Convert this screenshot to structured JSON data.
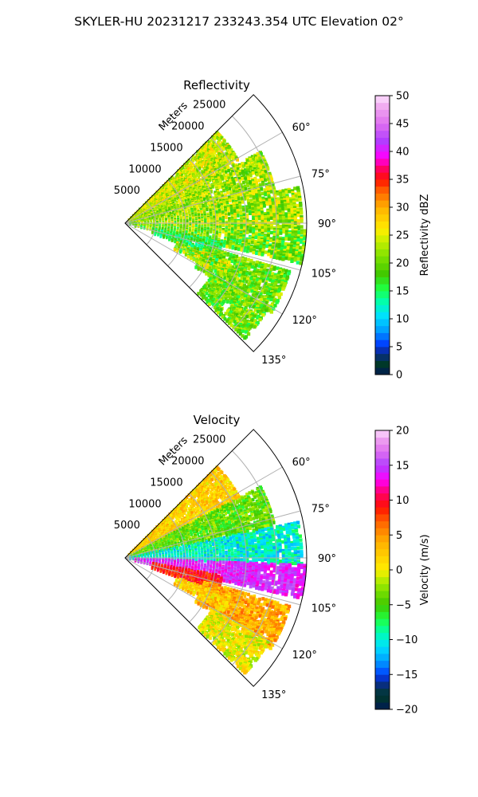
{
  "suptitle": "SKYLER-HU  20231217  233243.354 UTC Elevation 02°",
  "chart_data": [
    {
      "type": "heatmap",
      "projection": "polar-sector",
      "title": "Reflectivity",
      "radial_label": "Meters",
      "radial_ticks": [
        5000,
        10000,
        15000,
        20000,
        25000
      ],
      "rmax": 30000,
      "angle_ticks_deg": [
        60,
        75,
        90,
        105,
        120,
        135
      ],
      "angle_range_deg": [
        45,
        135
      ],
      "colorbar": {
        "label": "Reflectivity dBZ",
        "range": [
          0,
          50
        ],
        "ticks": [
          0,
          5,
          10,
          15,
          20,
          25,
          30,
          35,
          40,
          45,
          50
        ],
        "stops": [
          [
            0,
            "#001a55"
          ],
          [
            2,
            "#003a26"
          ],
          [
            4,
            "#0a2a9a"
          ],
          [
            5.5,
            "#0040ff"
          ],
          [
            8,
            "#00a0ff"
          ],
          [
            10.5,
            "#00e0ff"
          ],
          [
            13,
            "#00ffb0"
          ],
          [
            15.5,
            "#20ff40"
          ],
          [
            18,
            "#40c800"
          ],
          [
            21,
            "#7be000"
          ],
          [
            24,
            "#c8f000"
          ],
          [
            26,
            "#ffee00"
          ],
          [
            30,
            "#ffb000"
          ],
          [
            33,
            "#ff6000"
          ],
          [
            35,
            "#ff1000"
          ],
          [
            37,
            "#ff0066"
          ],
          [
            39,
            "#ff00ff"
          ],
          [
            42,
            "#b040ff"
          ],
          [
            45,
            "#e070f0"
          ],
          [
            48,
            "#f0a8f0"
          ],
          [
            50,
            "#fde0ff"
          ]
        ]
      },
      "echo_regions": [
        {
          "a0": 45,
          "a1": 62,
          "r0": 0.02,
          "r1": 0.72,
          "value": 24,
          "spread": 5
        },
        {
          "a0": 62,
          "a1": 78,
          "r0": 0.03,
          "r1": 0.85,
          "value": 22,
          "spread": 5
        },
        {
          "a0": 78,
          "a1": 92,
          "r0": 0.02,
          "r1": 0.98,
          "value": 22,
          "spread": 6
        },
        {
          "a0": 92,
          "a1": 103,
          "r0": 0.05,
          "r1": 1.0,
          "value": 20,
          "spread": 6
        },
        {
          "a0": 100,
          "a1": 110,
          "r0": 0.15,
          "r1": 0.55,
          "value": 16,
          "spread": 4
        },
        {
          "a0": 106,
          "a1": 122,
          "r0": 0.45,
          "r1": 0.95,
          "value": 20,
          "spread": 5
        },
        {
          "a0": 120,
          "a1": 134,
          "r0": 0.55,
          "r1": 0.92,
          "value": 20,
          "spread": 5
        },
        {
          "a0": 110,
          "a1": 118,
          "r0": 0.3,
          "r1": 0.62,
          "value": 21,
          "spread": 8
        }
      ]
    },
    {
      "type": "heatmap",
      "projection": "polar-sector",
      "title": "Velocity",
      "radial_label": "Meters",
      "radial_ticks": [
        5000,
        10000,
        15000,
        20000,
        25000
      ],
      "rmax": 30000,
      "angle_ticks_deg": [
        60,
        75,
        90,
        105,
        120,
        135
      ],
      "angle_range_deg": [
        45,
        135
      ],
      "colorbar": {
        "label": "Velocity (m/s)",
        "range": [
          -20,
          20
        ],
        "ticks": [
          -20,
          -15,
          -10,
          -5,
          0,
          5,
          10,
          15,
          20
        ],
        "stops": [
          [
            -20,
            "#001a55"
          ],
          [
            -18,
            "#003a26"
          ],
          [
            -16,
            "#0a2a9a"
          ],
          [
            -15,
            "#0040ff"
          ],
          [
            -13,
            "#00a0ff"
          ],
          [
            -11,
            "#00e0ff"
          ],
          [
            -9,
            "#00ffb0"
          ],
          [
            -7,
            "#20ff40"
          ],
          [
            -5,
            "#40c800"
          ],
          [
            -3,
            "#7be000"
          ],
          [
            -1,
            "#c8f000"
          ],
          [
            0,
            "#ffee00"
          ],
          [
            4,
            "#ffb000"
          ],
          [
            7,
            "#ff6000"
          ],
          [
            9,
            "#ff1000"
          ],
          [
            11,
            "#ff0066"
          ],
          [
            13,
            "#ff00ff"
          ],
          [
            15,
            "#b040ff"
          ],
          [
            17,
            "#e070f0"
          ],
          [
            19,
            "#f0a8f0"
          ],
          [
            20,
            "#fde0ff"
          ]
        ]
      },
      "echo_regions": [
        {
          "a0": 45,
          "a1": 62,
          "r0": 0.02,
          "r1": 0.72,
          "value": 2,
          "spread": 3
        },
        {
          "a0": 62,
          "a1": 78,
          "r0": 0.03,
          "r1": 0.85,
          "value": -4,
          "spread": 3
        },
        {
          "a0": 78,
          "a1": 92,
          "r0": 0.02,
          "r1": 0.98,
          "value": -10,
          "spread": 3
        },
        {
          "a0": 92,
          "a1": 103,
          "r0": 0.05,
          "r1": 1.0,
          "value": 14,
          "spread": 2
        },
        {
          "a0": 100,
          "a1": 110,
          "r0": 0.15,
          "r1": 0.55,
          "value": 9,
          "spread": 2
        },
        {
          "a0": 106,
          "a1": 122,
          "r0": 0.45,
          "r1": 0.95,
          "value": 4,
          "spread": 3
        },
        {
          "a0": 120,
          "a1": 134,
          "r0": 0.55,
          "r1": 0.92,
          "value": 0,
          "spread": 3
        },
        {
          "a0": 110,
          "a1": 118,
          "r0": 0.3,
          "r1": 0.62,
          "value": 2,
          "spread": 3
        }
      ]
    }
  ]
}
